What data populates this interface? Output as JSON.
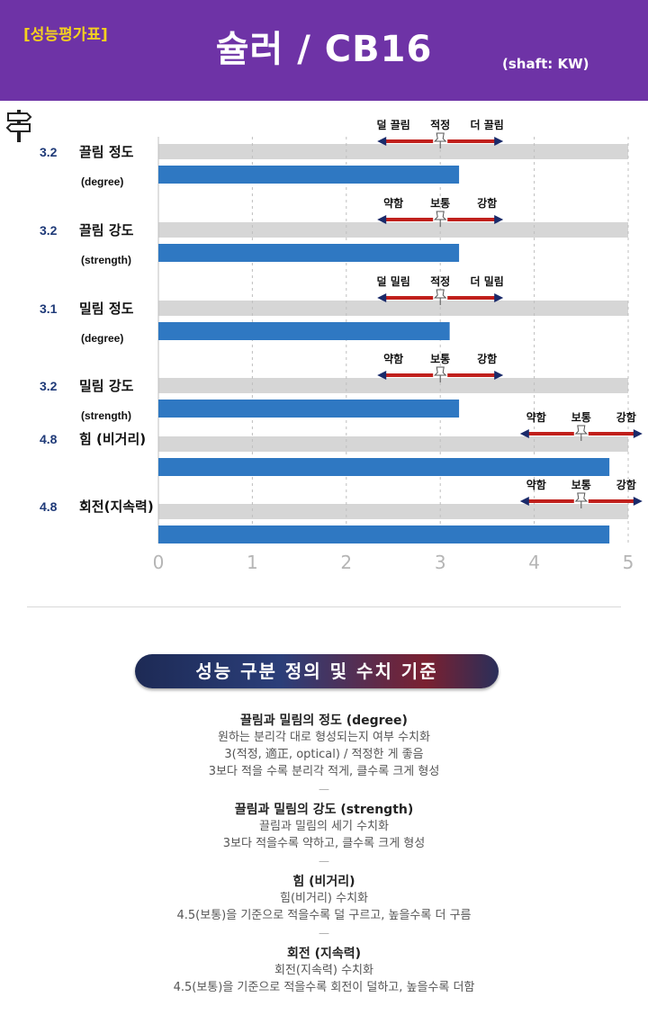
{
  "header": {
    "tag": "[성능평가표]",
    "title": "슐러 / CB16",
    "shaft": "(shaft: KW)"
  },
  "chart_data": {
    "type": "bar",
    "xlim": [
      0,
      5
    ],
    "x_ticks": [
      "0",
      "1",
      "2",
      "3",
      "4",
      "5"
    ],
    "grid": "vertical dashed",
    "categories": [
      {
        "score": "3.2",
        "name": "끌림 정도",
        "sub": "(degree)",
        "value": 3.2,
        "scale": {
          "left": "덜 끌림",
          "mid": "적정",
          "right": "더 끌림",
          "center": 3
        }
      },
      {
        "score": "3.2",
        "name": "끌림 강도",
        "sub": "(strength)",
        "value": 3.2,
        "scale": {
          "left": "약함",
          "mid": "보통",
          "right": "강함",
          "center": 3
        }
      },
      {
        "score": "3.1",
        "name": "밀림 정도",
        "sub": "(degree)",
        "value": 3.1,
        "scale": {
          "left": "덜 밀림",
          "mid": "적정",
          "right": "더 밀림",
          "center": 3
        }
      },
      {
        "score": "3.2",
        "name": "밀림 강도",
        "sub": "(strength)",
        "value": 3.2,
        "scale": {
          "left": "약함",
          "mid": "보통",
          "right": "강함",
          "center": 3
        }
      },
      {
        "score": "4.8",
        "name": "힘 (비거리)",
        "sub": "",
        "value": 4.8,
        "scale": {
          "left": "약함",
          "mid": "보통",
          "right": "강함",
          "center": 4.5
        }
      },
      {
        "score": "4.8",
        "name": "회전(지속력)",
        "sub": "",
        "value": 4.8,
        "scale": {
          "left": "약함",
          "mid": "보통",
          "right": "강함",
          "center": 4.5
        }
      }
    ],
    "colors": {
      "bar": "#2f78c2",
      "track": "#d6d6d6",
      "arrow": "#c0201c",
      "score": "#1f3a78"
    }
  },
  "definitions": {
    "banner": "성능 구분 정의 및 수치 기준",
    "sections": [
      {
        "title": "끌림과 밀림의 정도 (degree)",
        "lines": [
          "원하는 분리각 대로 형성되는지 여부 수치화",
          "3(적정, 適正, optical) / 적정한 게 좋음",
          "3보다 적을 수록 분리각 적게, 클수록 크게 형성"
        ]
      },
      {
        "title": "끌림과 밀림의 강도 (strength)",
        "lines": [
          "끌림과 밀림의 세기 수치화",
          "3보다 적을수록 약하고, 클수록 크게 형성"
        ]
      },
      {
        "title": "힘 (비거리)",
        "lines": [
          "힘(비거리) 수치화",
          "4.5(보통)을 기준으로 적을수록 덜 구르고, 높을수록 더 구름"
        ]
      },
      {
        "title": "회전 (지속력)",
        "lines": [
          "회전(지속력) 수치화",
          "4.5(보통)을 기준으로 적을수록 회전이 덜하고, 높을수록 더함"
        ]
      }
    ],
    "separator": "—"
  }
}
